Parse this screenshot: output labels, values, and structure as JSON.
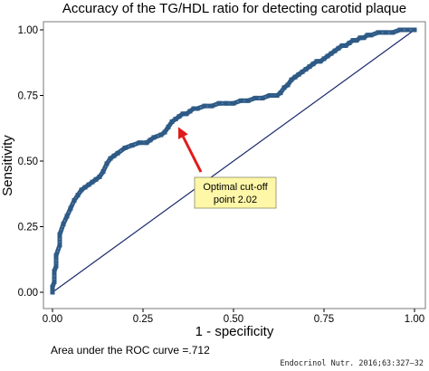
{
  "chart_data": {
    "type": "line",
    "title": "Accuracy of the TG/HDL ratio for detecting carotid plaque",
    "xlabel": "1 - specificity",
    "ylabel": "Sensitivity",
    "xlim": [
      0,
      1
    ],
    "ylim": [
      0,
      1
    ],
    "x_ticks": [
      "0.00",
      "0.25",
      "0.50",
      "0.75",
      "1.00"
    ],
    "y_ticks": [
      "0.00",
      "0.25",
      "0.50",
      "0.75",
      "1.00"
    ],
    "grid": false,
    "series": [
      {
        "color": "#2e5a86",
        "marker": "square",
        "x": [
          0.0,
          0.0,
          0.005,
          0.005,
          0.01,
          0.01,
          0.02,
          0.02,
          0.03,
          0.04,
          0.05,
          0.06,
          0.07,
          0.08,
          0.09,
          0.1,
          0.11,
          0.12,
          0.13,
          0.14,
          0.15,
          0.16,
          0.17,
          0.18,
          0.2,
          0.22,
          0.24,
          0.26,
          0.27,
          0.28,
          0.3,
          0.31,
          0.32,
          0.33,
          0.34,
          0.35,
          0.36,
          0.37,
          0.38,
          0.39,
          0.4,
          0.42,
          0.44,
          0.46,
          0.48,
          0.5,
          0.52,
          0.54,
          0.56,
          0.58,
          0.6,
          0.62,
          0.63,
          0.64,
          0.65,
          0.66,
          0.67,
          0.68,
          0.69,
          0.7,
          0.71,
          0.72,
          0.73,
          0.74,
          0.75,
          0.76,
          0.77,
          0.78,
          0.79,
          0.8,
          0.81,
          0.82,
          0.83,
          0.84,
          0.85,
          0.86,
          0.87,
          0.88,
          0.9,
          0.92,
          0.94,
          0.96,
          0.98,
          1.0
        ],
        "values": [
          0.0,
          0.02,
          0.04,
          0.08,
          0.1,
          0.14,
          0.18,
          0.22,
          0.26,
          0.29,
          0.32,
          0.35,
          0.37,
          0.39,
          0.4,
          0.41,
          0.42,
          0.43,
          0.44,
          0.46,
          0.49,
          0.51,
          0.52,
          0.53,
          0.55,
          0.56,
          0.57,
          0.57,
          0.58,
          0.59,
          0.6,
          0.61,
          0.63,
          0.65,
          0.66,
          0.67,
          0.68,
          0.68,
          0.69,
          0.7,
          0.7,
          0.71,
          0.71,
          0.72,
          0.72,
          0.72,
          0.73,
          0.73,
          0.74,
          0.74,
          0.75,
          0.75,
          0.76,
          0.78,
          0.79,
          0.81,
          0.82,
          0.83,
          0.84,
          0.85,
          0.86,
          0.87,
          0.88,
          0.88,
          0.89,
          0.9,
          0.91,
          0.92,
          0.93,
          0.94,
          0.94,
          0.95,
          0.96,
          0.96,
          0.97,
          0.97,
          0.98,
          0.98,
          0.99,
          0.99,
          0.99,
          1.0,
          1.0,
          1.0
        ]
      },
      {
        "color": "#1b2a6b",
        "x": [
          0,
          1
        ],
        "values": [
          0,
          1
        ]
      }
    ],
    "annotation": {
      "text_lines": [
        "Optimal cut-off",
        "point 2.02"
      ],
      "target_x": 0.34,
      "target_y": 0.64,
      "box_color": "#fff7a8",
      "arrow_color": "#e01b1b"
    },
    "note": "Area under the ROC curve =.712",
    "source": "Endocrinol Nutr. 2016;63:327–32"
  }
}
